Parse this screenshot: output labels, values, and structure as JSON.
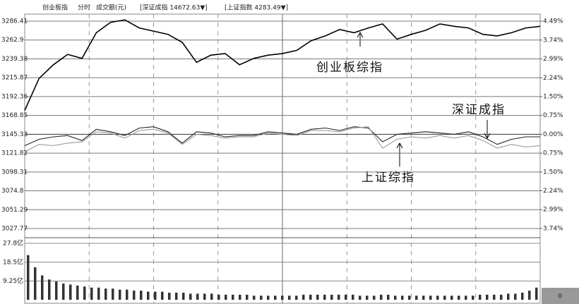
{
  "chart_data": {
    "type": "line",
    "title": "创业板指",
    "header_labels": [
      "分时",
      "成交额(元)",
      "[深证成指 14672.63▼]",
      "[上证指数 4283.49▼]"
    ],
    "ylim": [
      3027.77,
      3286.41
    ],
    "yticks": [
      3286.41,
      3262.9,
      3239.38,
      3215.87,
      3192.36,
      3168.85,
      3145.33,
      3121.82,
      3098.31,
      3074.8,
      3051.29,
      3027.77
    ],
    "y2lim": [
      -3.74,
      4.49
    ],
    "y2ticks": [
      {
        "value": 4.49,
        "label": "4.49%"
      },
      {
        "value": 3.74,
        "label": "3.74%"
      },
      {
        "value": 2.99,
        "label": "2.99%"
      },
      {
        "value": 2.24,
        "label": "2.24%"
      },
      {
        "value": 1.5,
        "label": "1.50%"
      },
      {
        "value": 0.75,
        "label": "0.75%"
      },
      {
        "value": 0,
        "label": "0.00%"
      },
      {
        "value": -0.75,
        "label": "0.75%"
      },
      {
        "value": -1.5,
        "label": "1.50%"
      },
      {
        "value": -2.24,
        "label": "2.24%"
      },
      {
        "value": -2.99,
        "label": "2.99%"
      },
      {
        "value": -3.74,
        "label": "3.74%"
      }
    ],
    "grid": true,
    "series": [
      {
        "name": "创业板综指",
        "color": "#000000",
        "values": [
          3175,
          3215,
          3232,
          3245,
          3240,
          3272,
          3285,
          3288,
          3278,
          3274,
          3270,
          3260,
          3235,
          3244,
          3246,
          3232,
          3240,
          3244,
          3246,
          3250,
          3262,
          3268,
          3276,
          3272,
          3278,
          3283,
          3264,
          3270,
          3275,
          3283,
          3280,
          3278,
          3270,
          3268,
          3272,
          3278,
          3280
        ]
      },
      {
        "name": "深证成指",
        "color": "#222222",
        "axis": "y2",
        "values": [
          -0.45,
          -0.2,
          -0.1,
          -0.05,
          -0.25,
          0.2,
          0.1,
          -0.05,
          0.25,
          0.3,
          0.1,
          -0.35,
          0.1,
          0.05,
          -0.1,
          -0.05,
          -0.05,
          0.1,
          0.05,
          0.0,
          0.2,
          0.25,
          0.15,
          0.3,
          0.25,
          -0.3,
          0.0,
          0.05,
          0.1,
          0.05,
          0.0,
          0.1,
          -0.1,
          -0.4,
          -0.2,
          -0.1,
          -0.1
        ]
      },
      {
        "name": "上证综指",
        "color": "#999999",
        "axis": "y2",
        "values": [
          -0.7,
          -0.4,
          -0.45,
          -0.35,
          -0.3,
          0.1,
          0.05,
          -0.15,
          0.15,
          0.2,
          0.05,
          -0.4,
          0.0,
          -0.05,
          -0.15,
          -0.1,
          -0.1,
          0.05,
          0.0,
          -0.05,
          0.15,
          0.15,
          0.1,
          0.25,
          0.3,
          -0.55,
          -0.2,
          -0.1,
          -0.15,
          -0.05,
          -0.15,
          -0.05,
          -0.25,
          -0.55,
          -0.4,
          -0.5,
          -0.45
        ]
      }
    ],
    "volume": {
      "type": "bar",
      "color": "#333333",
      "ylim": [
        0,
        27.8
      ],
      "yticks": [
        {
          "value": 27.8,
          "label": "27.8亿"
        },
        {
          "value": 18.5,
          "label": "18.5亿"
        },
        {
          "value": 9.25,
          "label": "9.25亿"
        }
      ],
      "corner_label": "0",
      "values": [
        22,
        16,
        12,
        10,
        9,
        8,
        7.5,
        7,
        6.5,
        6,
        6,
        5.5,
        5.5,
        5,
        5,
        4.5,
        4.5,
        4,
        4,
        4,
        3.5,
        3.5,
        3.5,
        3,
        3,
        3,
        3,
        2.5,
        2.5,
        2.5,
        2.5,
        2.5,
        2,
        2,
        2,
        2,
        2,
        2,
        2,
        2.5,
        2.5,
        2.5,
        2.5,
        2.5,
        2.5,
        2.5,
        2.5,
        2,
        2,
        2,
        2.5,
        2.5,
        2,
        2,
        2,
        2,
        2,
        2,
        2,
        2,
        2,
        2,
        2,
        2,
        2.5,
        2.5,
        2.5,
        2.5,
        3,
        3,
        3.5,
        4.5,
        6
      ]
    }
  }
}
